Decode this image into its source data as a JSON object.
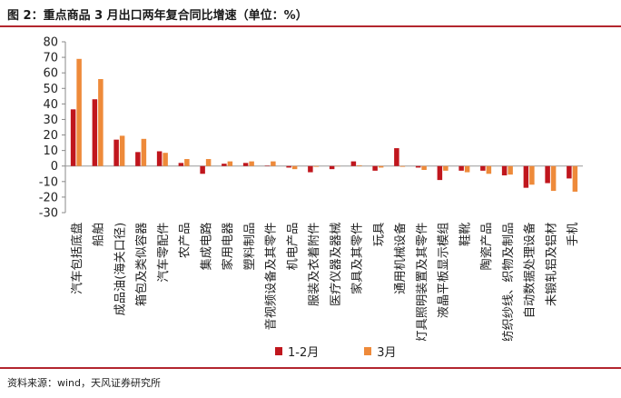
{
  "title": "图 2：重点商品 3 月出口两年复合同比增速（单位：%）",
  "source": "资料来源：wind，天风证券研究所",
  "colors": {
    "s1": "#c0161d",
    "s2": "#ee8a3a",
    "rule": "#b3262e"
  },
  "chart_data": {
    "type": "bar",
    "categories": [
      "汽车包括底盘",
      "船舶",
      "成品油(海关口径)",
      "箱包及类似容器",
      "汽车零配件",
      "农产品",
      "集成电路",
      "家用电器",
      "塑料制品",
      "音视频设备及其零件",
      "机电产品",
      "服装及衣着附件",
      "医疗仪器及器械",
      "家具及其零件",
      "玩具",
      "通用机械设备",
      "灯具照明装置及其零件",
      "液晶平板显示模组",
      "鞋靴",
      "陶瓷产品",
      "纺织纱线、织物及制品",
      "自动数据处理设备",
      "未锻轧铝及铝材",
      "手机"
    ],
    "series": [
      {
        "name": "1-2月",
        "values": [
          36.5,
          43,
          17,
          9,
          9.5,
          2,
          -5,
          1.5,
          2,
          0.3,
          -1,
          -4,
          -2,
          3,
          -3,
          11.5,
          -1,
          -9,
          -3,
          -3,
          -6,
          -14,
          -11,
          -8
        ]
      },
      {
        "name": "3月",
        "values": [
          69,
          56,
          19.5,
          17.5,
          8.5,
          4.5,
          4.5,
          3,
          3,
          3,
          -2,
          -0.5,
          0,
          0.5,
          -1,
          -0.5,
          -2.5,
          -3,
          -4,
          -5,
          -5.5,
          -12,
          -16,
          -16.5
        ]
      }
    ],
    "ylim": [
      -30,
      80
    ],
    "yticks": [
      -30,
      -20,
      -10,
      0,
      10,
      20,
      30,
      40,
      50,
      60,
      70,
      80
    ],
    "grid": false,
    "legend": "bottom"
  }
}
